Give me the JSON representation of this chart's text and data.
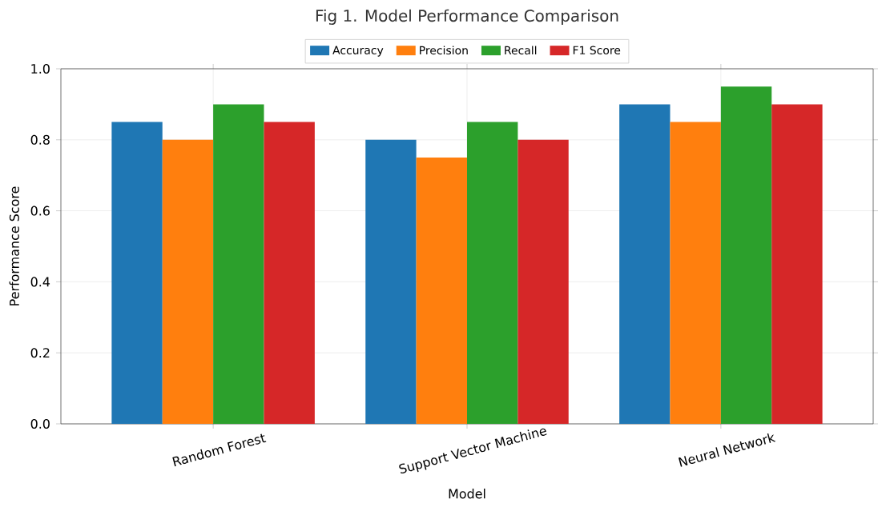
{
  "chart_data": {
    "type": "bar",
    "title": "Fig 1. Model Performance Comparison",
    "xlabel": "Model",
    "ylabel": "Performance Score",
    "categories": [
      "Random Forest",
      "Support Vector Machine",
      "Neural Network"
    ],
    "series": [
      {
        "name": "Accuracy",
        "color": "#1f77b4",
        "values": [
          0.85,
          0.8,
          0.9
        ]
      },
      {
        "name": "Precision",
        "color": "#ff7f0e",
        "values": [
          0.8,
          0.75,
          0.85
        ]
      },
      {
        "name": "Recall",
        "color": "#2ca02c",
        "values": [
          0.9,
          0.85,
          0.95
        ]
      },
      {
        "name": "F1 Score",
        "color": "#d62728",
        "values": [
          0.85,
          0.8,
          0.9
        ]
      }
    ],
    "ylim": [
      0,
      1
    ],
    "yticks": [
      {
        "value": 0,
        "label": "0.0"
      },
      {
        "value": 0.2,
        "label": "0.2"
      },
      {
        "value": 0.4,
        "label": "0.4"
      },
      {
        "value": 0.6,
        "label": "0.6"
      },
      {
        "value": 0.8,
        "label": "0.8"
      },
      {
        "value": 1,
        "label": "1.0"
      }
    ],
    "grid": true,
    "legend": "top"
  }
}
